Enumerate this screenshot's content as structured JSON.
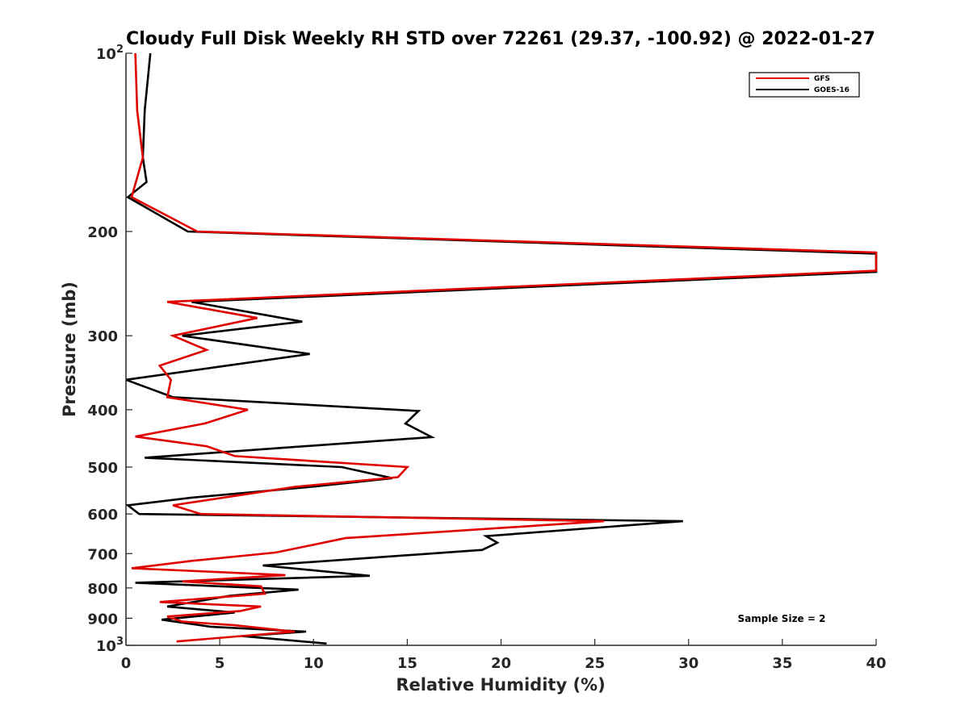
{
  "chart_data": {
    "type": "line",
    "title": "Cloudy Full Disk Weekly RH STD over 72261 (29.37, -100.92) @ 2022-01-27",
    "xlabel": "Relative Humidity (%)",
    "ylabel": "Pressure (mb)",
    "xlim": [
      0,
      40
    ],
    "ylim": [
      100,
      1000
    ],
    "y_scale": "log",
    "y_reversed": true,
    "grid": false,
    "legend_position": "top-right",
    "annotation": "Sample Size = 2",
    "x_ticks": [
      {
        "value": 0,
        "label": "0"
      },
      {
        "value": 5,
        "label": "5"
      },
      {
        "value": 10,
        "label": "10"
      },
      {
        "value": 15,
        "label": "15"
      },
      {
        "value": 20,
        "label": "20"
      },
      {
        "value": 25,
        "label": "25"
      },
      {
        "value": 30,
        "label": "30"
      },
      {
        "value": 35,
        "label": "35"
      },
      {
        "value": 40,
        "label": "40"
      }
    ],
    "y_ticks": [
      {
        "value": 100,
        "base": "10",
        "exp": "2"
      },
      {
        "value": 200,
        "base": "200",
        "exp": ""
      },
      {
        "value": 300,
        "base": "300",
        "exp": ""
      },
      {
        "value": 400,
        "base": "400",
        "exp": ""
      },
      {
        "value": 500,
        "base": "500",
        "exp": ""
      },
      {
        "value": 600,
        "base": "600",
        "exp": ""
      },
      {
        "value": 700,
        "base": "700",
        "exp": ""
      },
      {
        "value": 800,
        "base": "800",
        "exp": ""
      },
      {
        "value": 900,
        "base": "900",
        "exp": ""
      },
      {
        "value": 1000,
        "base": "10",
        "exp": "3"
      }
    ],
    "series": [
      {
        "name": "GFS",
        "color": "#e00000",
        "points": [
          [
            0.5,
            100
          ],
          [
            0.6,
            125
          ],
          [
            0.9,
            150
          ],
          [
            0.3,
            175
          ],
          [
            3.8,
            200
          ],
          [
            40,
            217
          ],
          [
            40,
            233
          ],
          [
            2.2,
            263
          ],
          [
            7.0,
            280
          ],
          [
            2.5,
            300
          ],
          [
            4.3,
            317
          ],
          [
            1.8,
            337
          ],
          [
            2.4,
            356
          ],
          [
            2.2,
            381
          ],
          [
            6.5,
            400
          ],
          [
            4.2,
            422
          ],
          [
            0.5,
            444
          ],
          [
            4.3,
            461
          ],
          [
            5.8,
            479
          ],
          [
            15.0,
            500
          ],
          [
            14.5,
            520
          ],
          [
            9.0,
            540
          ],
          [
            2.5,
            580
          ],
          [
            4.0,
            600
          ],
          [
            25.5,
            617
          ],
          [
            11.7,
            659
          ],
          [
            8.0,
            697
          ],
          [
            3.5,
            720
          ],
          [
            0.3,
            741
          ],
          [
            8.5,
            761
          ],
          [
            3.0,
            780
          ],
          [
            7.2,
            795
          ],
          [
            7.4,
            818
          ],
          [
            1.8,
            845
          ],
          [
            7.2,
            860
          ],
          [
            6.1,
            875
          ],
          [
            2.2,
            894
          ],
          [
            3.0,
            912
          ],
          [
            5.8,
            925
          ],
          [
            9.0,
            948
          ],
          [
            2.7,
            985
          ]
        ]
      },
      {
        "name": "GOES-16",
        "color": "#000000",
        "points": [
          [
            1.3,
            100
          ],
          [
            1.0,
            125
          ],
          [
            0.9,
            150
          ],
          [
            1.1,
            165
          ],
          [
            0.1,
            175
          ],
          [
            3.3,
            200
          ],
          [
            40,
            218
          ],
          [
            40,
            234
          ],
          [
            3.5,
            263
          ],
          [
            9.4,
            284
          ],
          [
            3.0,
            300
          ],
          [
            9.8,
            322
          ],
          [
            0.0,
            356
          ],
          [
            2.5,
            381
          ],
          [
            15.6,
            402
          ],
          [
            14.9,
            422
          ],
          [
            16.3,
            445
          ],
          [
            1.0,
            482
          ],
          [
            11.5,
            500
          ],
          [
            14.2,
            522
          ],
          [
            10.1,
            539
          ],
          [
            3.5,
            563
          ],
          [
            0.1,
            580
          ],
          [
            0.7,
            600
          ],
          [
            29.7,
            617
          ],
          [
            19.2,
            654
          ],
          [
            19.8,
            671
          ],
          [
            19.0,
            690
          ],
          [
            7.3,
            733
          ],
          [
            13.0,
            763
          ],
          [
            0.5,
            784
          ],
          [
            9.2,
            805
          ],
          [
            5.5,
            825
          ],
          [
            2.2,
            860
          ],
          [
            5.8,
            880
          ],
          [
            1.9,
            905
          ],
          [
            4.5,
            930
          ],
          [
            9.6,
            948
          ],
          [
            6.2,
            965
          ],
          [
            10.7,
            993
          ]
        ]
      }
    ]
  }
}
